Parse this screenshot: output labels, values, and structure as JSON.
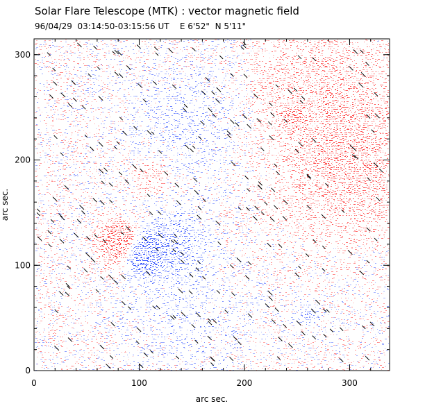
{
  "header": {
    "title": "Solar Flare Telescope (MTK) : vector magnetic field",
    "subtitle": "96/04/29  03:14:50-03:15:56 UT    E 6'52\"  N 5'11\""
  },
  "chart_data": {
    "type": "heatmap",
    "title": "Solar Flare Telescope (MTK) : vector magnetic field",
    "subtitle": "96/04/29  03:14:50-03:15:56 UT    E 6'52\"  N 5'11\"",
    "xlabel": "arc sec.",
    "ylabel": "arc sec.",
    "xlim": [
      0,
      338
    ],
    "ylim": [
      0,
      315
    ],
    "x_ticks": [
      0,
      100,
      200,
      300
    ],
    "y_ticks": [
      0,
      100,
      200,
      300
    ],
    "grid": false,
    "colors": {
      "positive_polarity": "#ff4040",
      "negative_polarity": "#3050ff",
      "transverse_field_vectors": "#000000",
      "background": "#ffffff"
    },
    "field_concentrations": [
      {
        "polarity": "positive",
        "x": 80,
        "y": 122,
        "radius": 12,
        "strength": 1.0
      },
      {
        "polarity": "negative",
        "x": 102,
        "y": 112,
        "radius": 11,
        "strength": 1.0
      },
      {
        "polarity": "negative",
        "x": 130,
        "y": 122,
        "radius": 20,
        "strength": 0.3
      },
      {
        "polarity": "positive",
        "x": 245,
        "y": 243,
        "radius": 6,
        "strength": 0.6
      },
      {
        "polarity": "positive",
        "x": 110,
        "y": 185,
        "radius": 10,
        "strength": 0.3
      },
      {
        "polarity": "positive",
        "x": 300,
        "y": 190,
        "radius": 45,
        "strength": 0.25
      },
      {
        "polarity": "positive",
        "x": 270,
        "y": 270,
        "radius": 50,
        "strength": 0.2
      },
      {
        "polarity": "negative",
        "x": 150,
        "y": 240,
        "radius": 40,
        "strength": 0.15
      },
      {
        "polarity": "negative",
        "x": 140,
        "y": 60,
        "radius": 40,
        "strength": 0.12
      },
      {
        "polarity": "negative",
        "x": 260,
        "y": 55,
        "radius": 6,
        "strength": 0.4
      }
    ],
    "transverse_vectors": {
      "orientation": "northwest-southeast",
      "approximate_count": 300
    }
  }
}
